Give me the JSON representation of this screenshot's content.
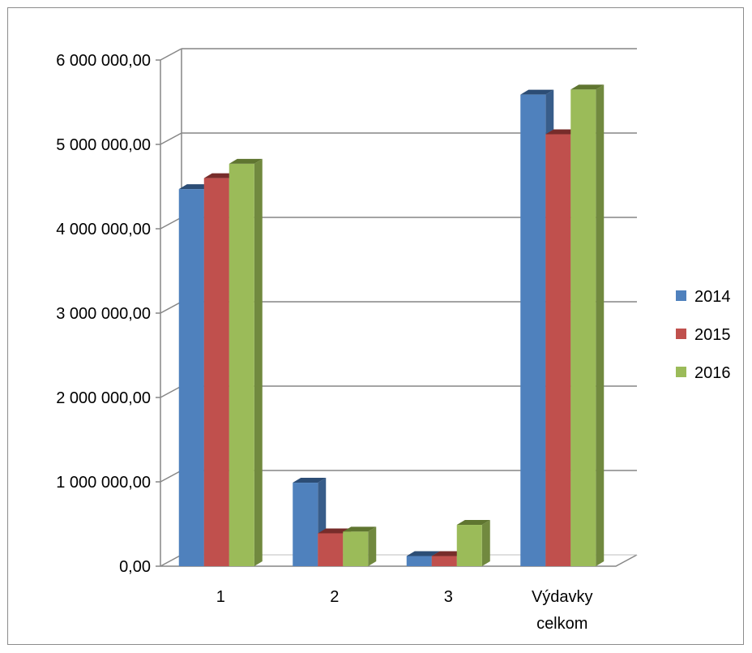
{
  "chart_data": {
    "type": "bar",
    "title": "",
    "xlabel": "",
    "ylabel": "",
    "categories": [
      [
        "1"
      ],
      [
        "2"
      ],
      [
        "3"
      ],
      [
        "Výdavky",
        "celkom"
      ]
    ],
    "series": [
      {
        "name": "2014",
        "color": "#4f81bd",
        "side": "#385d8a",
        "top": "#2c4d75",
        "values": [
          4470000,
          990000,
          120000,
          5590000
        ]
      },
      {
        "name": "2015",
        "color": "#c0504d",
        "side": "#8c3836",
        "top": "#772c2a",
        "values": [
          4600000,
          390000,
          120000,
          5120000
        ]
      },
      {
        "name": "2016",
        "color": "#9bbb59",
        "side": "#71893f",
        "top": "#5f7530",
        "values": [
          4770000,
          410000,
          490000,
          5650000
        ]
      }
    ],
    "ylim": [
      0,
      6000000
    ],
    "yticks": [
      "0,00",
      "1 000 000,00",
      "2 000 000,00",
      "3 000 000,00",
      "4 000 000,00",
      "5 000 000,00",
      "6 000 000,00"
    ],
    "grid": true,
    "legend": "right"
  }
}
